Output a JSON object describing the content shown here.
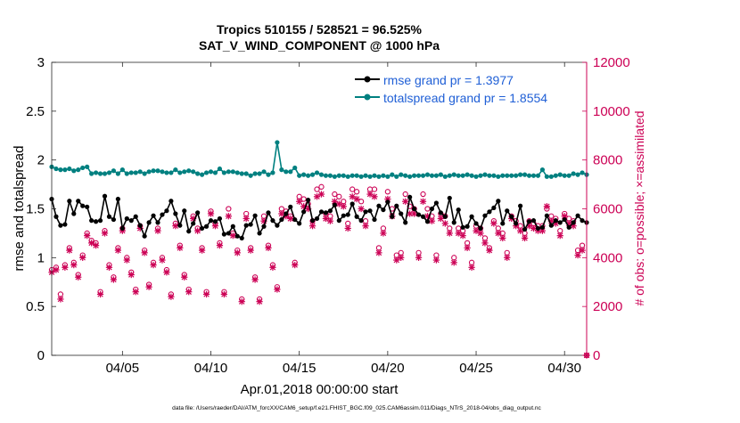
{
  "chart_data": {
    "type": "line",
    "title": "Tropics 510155 / 528521 = 96.525%",
    "subtitle": "SAT_V_WIND_COMPONENT @ 1000 hPa",
    "xlabel": "Apr.01,2018 00:00:00 start",
    "ylabel_left": "rmse and totalspread",
    "ylabel_right": "# of obs: o=possible; ×=assimilated",
    "footnote": "data file: /Users/raeder/DAI/ATM_forcXX/CAM6_setup/f.e21.FHIST_BGC.f09_025.CAM6assim.011/Diags_NTrS_2018-04/obs_diag_output.nc",
    "xlim": [
      1,
      31.25
    ],
    "ylim_left": [
      0,
      3
    ],
    "ylim_right": [
      0,
      12000
    ],
    "x_ticks": [
      5,
      10,
      15,
      20,
      25,
      30
    ],
    "x_tick_labels": [
      "04/05",
      "04/10",
      "04/15",
      "04/20",
      "04/25",
      "04/30"
    ],
    "y_left_ticks": [
      0,
      0.5,
      1,
      1.5,
      2,
      2.5,
      3
    ],
    "y_left_tick_labels": [
      "0",
      "0.5",
      "1",
      "1.5",
      "2",
      "2.5",
      "3"
    ],
    "y_right_ticks": [
      0,
      2000,
      4000,
      6000,
      8000,
      10000,
      12000
    ],
    "y_right_tick_labels": [
      "0",
      "2000",
      "4000",
      "6000",
      "8000",
      "10000",
      "12000"
    ],
    "legend_position": "top-right",
    "colors": {
      "rmse": "#000000",
      "totalspread": "#008080",
      "obs": "#cc0055",
      "right_axis": "#cc0055",
      "legend_text": "#1f5fd6"
    },
    "series": [
      {
        "name": "rmse grand pr = 1.3977",
        "x": [
          1.0,
          1.25,
          1.5,
          1.75,
          2.0,
          2.25,
          2.5,
          2.75,
          3.0,
          3.25,
          3.5,
          3.75,
          4.0,
          4.25,
          4.5,
          4.75,
          5.0,
          5.25,
          5.5,
          5.75,
          6.0,
          6.25,
          6.5,
          6.75,
          7.0,
          7.25,
          7.5,
          7.75,
          8.0,
          8.25,
          8.5,
          8.75,
          9.0,
          9.25,
          9.5,
          9.75,
          10.0,
          10.25,
          10.5,
          10.75,
          11.0,
          11.25,
          11.5,
          11.75,
          12.0,
          12.25,
          12.5,
          12.75,
          13.0,
          13.25,
          13.5,
          13.75,
          14.0,
          14.25,
          14.5,
          14.75,
          15.0,
          15.25,
          15.5,
          15.75,
          16.0,
          16.25,
          16.5,
          16.75,
          17.0,
          17.25,
          17.5,
          17.75,
          18.0,
          18.25,
          18.5,
          18.75,
          19.0,
          19.25,
          19.5,
          19.75,
          20.0,
          20.25,
          20.5,
          20.75,
          21.0,
          21.25,
          21.5,
          21.75,
          22.0,
          22.25,
          22.5,
          22.75,
          23.0,
          23.25,
          23.5,
          23.75,
          24.0,
          24.25,
          24.5,
          24.75,
          25.0,
          25.25,
          25.5,
          25.75,
          26.0,
          26.25,
          26.5,
          26.75,
          27.0,
          27.25,
          27.5,
          27.75,
          28.0,
          28.25,
          28.5,
          28.75,
          29.0,
          29.25,
          29.5,
          29.75,
          30.0,
          30.25,
          30.5,
          30.75,
          31.0,
          31.25
        ],
        "values": [
          1.6,
          1.42,
          1.33,
          1.34,
          1.58,
          1.45,
          1.58,
          1.53,
          1.52,
          1.38,
          1.37,
          1.38,
          1.63,
          1.42,
          1.39,
          1.6,
          1.3,
          1.4,
          1.38,
          1.42,
          1.33,
          1.22,
          1.36,
          1.43,
          1.36,
          1.44,
          1.48,
          1.58,
          1.45,
          1.33,
          1.48,
          1.27,
          1.35,
          1.46,
          1.3,
          1.32,
          1.38,
          1.37,
          1.4,
          1.24,
          1.25,
          1.32,
          1.22,
          1.2,
          1.33,
          1.34,
          1.43,
          1.25,
          1.32,
          1.46,
          1.38,
          1.33,
          1.39,
          1.45,
          1.52,
          1.39,
          1.35,
          1.47,
          1.59,
          1.38,
          1.4,
          1.47,
          1.46,
          1.48,
          1.54,
          1.38,
          1.43,
          1.44,
          1.55,
          1.42,
          1.38,
          1.47,
          1.48,
          1.39,
          1.53,
          1.49,
          1.57,
          1.42,
          1.53,
          1.45,
          1.36,
          1.62,
          1.5,
          1.44,
          1.42,
          1.37,
          1.5,
          1.56,
          1.46,
          1.42,
          1.61,
          1.36,
          1.49,
          1.31,
          1.32,
          1.42,
          1.35,
          1.3,
          1.43,
          1.47,
          1.51,
          1.58,
          1.35,
          1.48,
          1.42,
          1.35,
          1.53,
          1.29,
          1.37,
          1.38,
          1.3,
          1.31,
          1.43,
          1.33,
          1.38,
          1.36,
          1.39,
          1.31,
          1.36,
          1.43,
          1.38,
          1.36
        ]
      },
      {
        "name": "totalspread grand pr = 1.8554",
        "x": [
          1.0,
          1.25,
          1.5,
          1.75,
          2.0,
          2.25,
          2.5,
          2.75,
          3.0,
          3.25,
          3.5,
          3.75,
          4.0,
          4.25,
          4.5,
          4.75,
          5.0,
          5.25,
          5.5,
          5.75,
          6.0,
          6.25,
          6.5,
          6.75,
          7.0,
          7.25,
          7.5,
          7.75,
          8.0,
          8.25,
          8.5,
          8.75,
          9.0,
          9.25,
          9.5,
          9.75,
          10.0,
          10.25,
          10.5,
          10.75,
          11.0,
          11.25,
          11.5,
          11.75,
          12.0,
          12.25,
          12.5,
          12.75,
          13.0,
          13.25,
          13.5,
          13.75,
          14.0,
          14.25,
          14.5,
          14.75,
          15.0,
          15.25,
          15.5,
          15.75,
          16.0,
          16.25,
          16.5,
          16.75,
          17.0,
          17.25,
          17.5,
          17.75,
          18.0,
          18.25,
          18.5,
          18.75,
          19.0,
          19.25,
          19.5,
          19.75,
          20.0,
          20.25,
          20.5,
          20.75,
          21.0,
          21.25,
          21.5,
          21.75,
          22.0,
          22.25,
          22.5,
          22.75,
          23.0,
          23.25,
          23.5,
          23.75,
          24.0,
          24.25,
          24.5,
          24.75,
          25.0,
          25.25,
          25.5,
          25.75,
          26.0,
          26.25,
          26.5,
          26.75,
          27.0,
          27.25,
          27.5,
          27.75,
          28.0,
          28.25,
          28.5,
          28.75,
          29.0,
          29.25,
          29.5,
          29.75,
          30.0,
          30.25,
          30.5,
          30.75,
          31.0,
          31.25
        ],
        "values": [
          1.93,
          1.91,
          1.9,
          1.9,
          1.91,
          1.89,
          1.9,
          1.92,
          1.93,
          1.86,
          1.87,
          1.86,
          1.86,
          1.87,
          1.89,
          1.86,
          1.9,
          1.86,
          1.87,
          1.87,
          1.88,
          1.86,
          1.88,
          1.89,
          1.89,
          1.88,
          1.87,
          1.87,
          1.9,
          1.87,
          1.88,
          1.89,
          1.88,
          1.86,
          1.85,
          1.87,
          1.88,
          1.87,
          1.91,
          1.87,
          1.88,
          1.88,
          1.87,
          1.86,
          1.86,
          1.84,
          1.86,
          1.86,
          1.88,
          1.85,
          1.87,
          2.18,
          1.9,
          1.88,
          1.88,
          1.92,
          1.84,
          1.85,
          1.84,
          1.85,
          1.87,
          1.85,
          1.84,
          1.84,
          1.83,
          1.84,
          1.84,
          1.83,
          1.84,
          1.84,
          1.83,
          1.84,
          1.83,
          1.84,
          1.83,
          1.84,
          1.83,
          1.85,
          1.83,
          1.85,
          1.84,
          1.83,
          1.84,
          1.84,
          1.84,
          1.85,
          1.84,
          1.84,
          1.85,
          1.83,
          1.84,
          1.85,
          1.84,
          1.84,
          1.85,
          1.84,
          1.83,
          1.84,
          1.85,
          1.84,
          1.84,
          1.83,
          1.84,
          1.84,
          1.84,
          1.84,
          1.85,
          1.85,
          1.84,
          1.84,
          1.84,
          1.9,
          1.83,
          1.83,
          1.84,
          1.85,
          1.84,
          1.84,
          1.86,
          1.85,
          1.87,
          1.85
        ]
      },
      {
        "name": "obs possible (o)",
        "x": [
          1.0,
          1.25,
          1.5,
          1.75,
          2.0,
          2.25,
          2.5,
          2.75,
          3.0,
          3.25,
          3.5,
          3.75,
          4.0,
          4.25,
          4.5,
          4.75,
          5.0,
          5.25,
          5.5,
          5.75,
          6.0,
          6.25,
          6.5,
          6.75,
          7.0,
          7.25,
          7.5,
          7.75,
          8.0,
          8.25,
          8.5,
          8.75,
          9.0,
          9.25,
          9.5,
          9.75,
          10.0,
          10.25,
          10.5,
          10.75,
          11.0,
          11.25,
          11.5,
          11.75,
          12.0,
          12.25,
          12.5,
          12.75,
          13.0,
          13.25,
          13.5,
          13.75,
          14.0,
          14.25,
          14.5,
          14.75,
          15.0,
          15.25,
          15.5,
          15.75,
          16.0,
          16.25,
          16.5,
          16.75,
          17.0,
          17.25,
          17.5,
          17.75,
          18.0,
          18.25,
          18.5,
          18.75,
          19.0,
          19.25,
          19.5,
          19.75,
          20.0,
          20.25,
          20.5,
          20.75,
          21.0,
          21.25,
          21.5,
          21.75,
          22.0,
          22.25,
          22.5,
          22.75,
          23.0,
          23.25,
          23.5,
          23.75,
          24.0,
          24.25,
          24.5,
          24.75,
          25.0,
          25.25,
          25.5,
          25.75,
          26.0,
          26.25,
          26.5,
          26.75,
          27.0,
          27.25,
          27.5,
          27.75,
          28.0,
          28.25,
          28.5,
          28.75,
          29.0,
          29.25,
          29.5,
          29.75,
          30.0,
          30.25,
          30.5,
          30.75,
          31.0,
          31.25
        ],
        "values": [
          3500,
          3600,
          2500,
          3700,
          4400,
          3800,
          3300,
          4100,
          5000,
          4700,
          4600,
          2600,
          5100,
          3700,
          3200,
          4400,
          5200,
          4000,
          3400,
          2700,
          5300,
          4300,
          2900,
          3800,
          5200,
          4000,
          3500,
          2500,
          5400,
          4500,
          3300,
          2700,
          5700,
          5200,
          4400,
          2600,
          5900,
          5400,
          4600,
          2600,
          6000,
          5000,
          4300,
          2300,
          5800,
          4400,
          3200,
          2300,
          5700,
          4500,
          3700,
          2800,
          6000,
          5900,
          5700,
          3800,
          6500,
          6400,
          6200,
          5500,
          6800,
          6900,
          5800,
          5700,
          6600,
          6500,
          6300,
          5400,
          6800,
          6700,
          6300,
          5500,
          6800,
          6800,
          4400,
          5200,
          6700,
          6000,
          4100,
          4200,
          6600,
          6100,
          6000,
          4200,
          6600,
          6000,
          5700,
          4100,
          5800,
          5700,
          5200,
          4000,
          5200,
          5100,
          4600,
          3800,
          5300,
          5200,
          4800,
          4400,
          5500,
          5200,
          5000,
          4200,
          5700,
          5500,
          5300,
          5000,
          5500,
          5400,
          5300,
          5300,
          6000,
          5700,
          5600,
          5100,
          5800,
          5600,
          5500,
          4300,
          4500,
          0
        ]
      },
      {
        "name": "obs assimilated (×)",
        "x": [
          1.0,
          1.25,
          1.5,
          1.75,
          2.0,
          2.25,
          2.5,
          2.75,
          3.0,
          3.25,
          3.5,
          3.75,
          4.0,
          4.25,
          4.5,
          4.75,
          5.0,
          5.25,
          5.5,
          5.75,
          6.0,
          6.25,
          6.5,
          6.75,
          7.0,
          7.25,
          7.5,
          7.75,
          8.0,
          8.25,
          8.5,
          8.75,
          9.0,
          9.25,
          9.5,
          9.75,
          10.0,
          10.25,
          10.5,
          10.75,
          11.0,
          11.25,
          11.5,
          11.75,
          12.0,
          12.25,
          12.5,
          12.75,
          13.0,
          13.25,
          13.5,
          13.75,
          14.0,
          14.25,
          14.5,
          14.75,
          15.0,
          15.25,
          15.5,
          15.75,
          16.0,
          16.25,
          16.5,
          16.75,
          17.0,
          17.25,
          17.5,
          17.75,
          18.0,
          18.25,
          18.5,
          18.75,
          19.0,
          19.25,
          19.5,
          19.75,
          20.0,
          20.25,
          20.5,
          20.75,
          21.0,
          21.25,
          21.5,
          21.75,
          22.0,
          22.25,
          22.5,
          22.75,
          23.0,
          23.25,
          23.5,
          23.75,
          24.0,
          24.25,
          24.5,
          24.75,
          25.0,
          25.25,
          25.5,
          25.75,
          26.0,
          26.25,
          26.5,
          26.75,
          27.0,
          27.25,
          27.5,
          27.75,
          28.0,
          28.25,
          28.5,
          28.75,
          29.0,
          29.25,
          29.5,
          29.75,
          30.0,
          30.25,
          30.5,
          30.75,
          31.0,
          31.25
        ],
        "values": [
          3400,
          3500,
          2300,
          3600,
          4300,
          3700,
          3200,
          4000,
          4900,
          4600,
          4500,
          2500,
          5000,
          3600,
          3100,
          4300,
          5100,
          3900,
          3300,
          2600,
          5200,
          4200,
          2800,
          3700,
          5100,
          3900,
          3400,
          2400,
          5300,
          4400,
          3200,
          2600,
          5600,
          5100,
          4300,
          2500,
          5800,
          5300,
          4500,
          2500,
          5700,
          4900,
          4200,
          2200,
          5600,
          4300,
          3100,
          2200,
          5500,
          4400,
          3600,
          2700,
          5800,
          5700,
          5600,
          3700,
          6300,
          6100,
          6000,
          5300,
          6500,
          6600,
          5600,
          5500,
          6300,
          6200,
          6100,
          5200,
          6500,
          6400,
          6000,
          5300,
          6600,
          6500,
          4200,
          5000,
          6400,
          5700,
          3900,
          4000,
          6300,
          5800,
          5800,
          4000,
          6300,
          5700,
          5500,
          3900,
          5600,
          5400,
          5000,
          3800,
          5000,
          4900,
          4400,
          3600,
          5100,
          5000,
          4600,
          4300,
          5400,
          5000,
          4800,
          4000,
          5600,
          5300,
          5100,
          4800,
          5300,
          5200,
          5100,
          5100,
          6100,
          5500,
          5400,
          4900,
          5700,
          5400,
          5300,
          4100,
          4300,
          0
        ]
      }
    ]
  }
}
